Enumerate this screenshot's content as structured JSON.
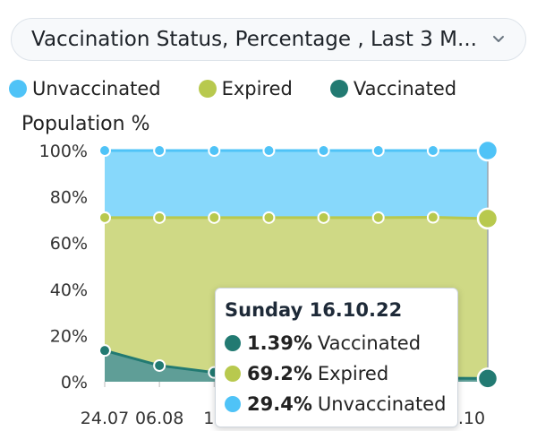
{
  "dropdown": {
    "label": "Vaccination Status, Percentage , Last 3 M..."
  },
  "legend": [
    {
      "label": "Unvaccinated",
      "color": "#4fc3f7"
    },
    {
      "label": "Expired",
      "color": "#b8c94e"
    },
    {
      "label": "Vaccinated",
      "color": "#227a72"
    }
  ],
  "chart_data": {
    "type": "area",
    "stacked": true,
    "title": "",
    "ylabel": "Population %",
    "xlabel": "",
    "ylim": [
      0,
      100
    ],
    "yticks": [
      "0%",
      "20%",
      "40%",
      "60%",
      "80%",
      "100%"
    ],
    "xticks": [
      "24.07",
      "06.08",
      "19",
      ".10"
    ],
    "x": [
      "24.07",
      "06.08",
      "",
      "",
      "",
      "",
      "",
      "16.10.22"
    ],
    "series": [
      {
        "name": "Vaccinated",
        "color": "#227a72",
        "values": [
          13.5,
          7,
          4,
          3,
          2.5,
          2,
          1.6,
          1.39
        ]
      },
      {
        "name": "Expired",
        "color": "#b8c94e",
        "values": [
          57.5,
          64,
          67,
          68,
          68.5,
          69,
          69.5,
          69.2
        ]
      },
      {
        "name": "Unvaccinated",
        "color": "#4fc3f7",
        "values": [
          29,
          29,
          29,
          29,
          29,
          29,
          28.9,
          29.4
        ]
      }
    ],
    "grid": false,
    "legend_position": "top-left"
  },
  "tooltip": {
    "title": "Sunday 16.10.22",
    "rows": [
      {
        "value": "1.39%",
        "label": "Vaccinated",
        "color": "#227a72"
      },
      {
        "value": "69.2%",
        "label": "Expired",
        "color": "#b8c94e"
      },
      {
        "value": "29.4%",
        "label": "Unvaccinated",
        "color": "#4fc3f7"
      }
    ]
  }
}
